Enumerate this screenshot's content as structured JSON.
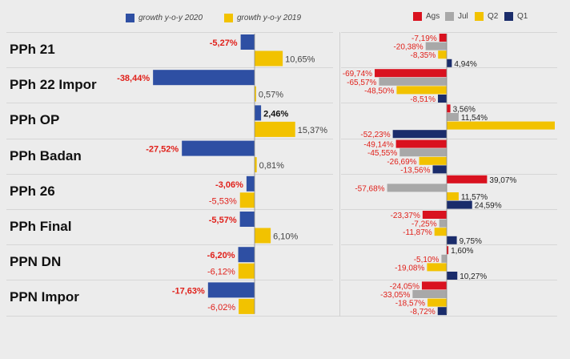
{
  "chart_data": [
    {
      "type": "bar",
      "orientation": "horizontal",
      "title": "",
      "categories": [
        "PPh 21",
        "PPh 22 Impor",
        "PPh OP",
        "PPh Badan",
        "PPh 26",
        "PPh Final",
        "PPN DN",
        "PPN Impor"
      ],
      "series": [
        {
          "name": "growth y-o-y 2020",
          "color": "#2e4fa3",
          "values": [
            -5.27,
            -38.44,
            2.46,
            -27.52,
            -3.06,
            -5.57,
            -6.2,
            -17.63
          ],
          "labels": [
            "-5,27%",
            "-38,44%",
            "2,46%",
            "-27,52%",
            "-3,06%",
            "-5,57%",
            "-6,20%",
            "-17,63%"
          ]
        },
        {
          "name": "growth y-o-y 2019",
          "color": "#f2c200",
          "values": [
            10.65,
            0.57,
            15.37,
            0.81,
            -5.53,
            6.1,
            -6.12,
            -6.02
          ],
          "labels": [
            "10,65%",
            "0,57%",
            "15,37%",
            "0,81%",
            "-5,53%",
            "6,10%",
            "-6,12%",
            "-6,02%"
          ]
        }
      ]
    },
    {
      "type": "bar",
      "orientation": "horizontal",
      "title": "",
      "categories": [
        "PPh 21",
        "PPh 22 Impor",
        "PPh OP",
        "PPh Badan",
        "PPh 26",
        "PPh Final",
        "PPN DN",
        "PPN Impor"
      ],
      "series": [
        {
          "name": "Ags",
          "color": "#d9121f",
          "values": [
            -7.19,
            -69.74,
            3.56,
            -49.14,
            39.07,
            -23.37,
            1.6,
            -24.05
          ],
          "labels": [
            "-7,19%",
            "-69,74%",
            "3,56%",
            "-49,14%",
            "39,07%",
            "-23,37%",
            "1,60%",
            "-24,05%"
          ]
        },
        {
          "name": "Jul",
          "color": "#a8a8a8",
          "values": [
            -20.38,
            -65.57,
            11.54,
            -45.55,
            -57.68,
            -7.25,
            -5.1,
            -33.05
          ],
          "labels": [
            "-20,38%",
            "-65,57%",
            "11,54%",
            "-45,55%",
            "-57,68%",
            "-7,25%",
            "-5,10%",
            "-33,05%"
          ]
        },
        {
          "name": "Q2",
          "color": "#f2c200",
          "values": [
            -8.35,
            -48.5,
            152.0,
            -26.69,
            11.57,
            -11.87,
            -19.08,
            -18.57
          ],
          "labels": [
            "-8,35%",
            "-48,50%",
            "",
            "-26,69%",
            "11,57%",
            "-11,87%",
            "-19,08%",
            "-18,57%"
          ]
        },
        {
          "name": "Q1",
          "color": "#1a2c6b",
          "values": [
            4.94,
            -8.51,
            -52.23,
            -13.56,
            24.59,
            9.75,
            10.27,
            -8.72
          ],
          "labels": [
            "4,94%",
            "-8,51%",
            "-52,23%",
            "-13,56%",
            "24,59%",
            "9,75%",
            "10,27%",
            "-8,72%"
          ]
        }
      ]
    }
  ]
}
